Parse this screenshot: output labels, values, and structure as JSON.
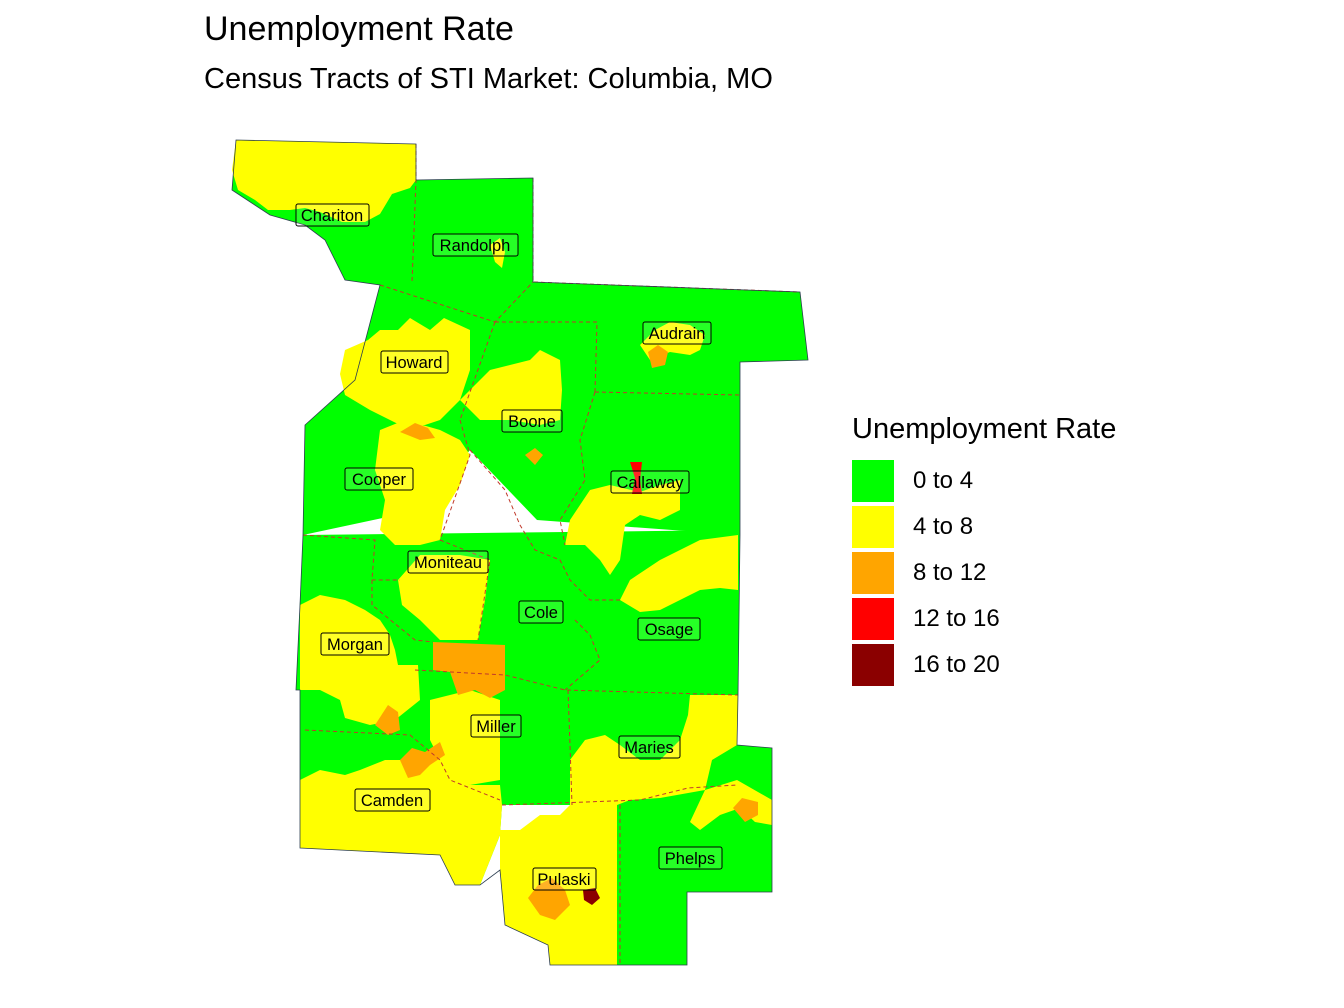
{
  "title": "Unemployment Rate",
  "subtitle": "Census Tracts of STI Market: Columbia, MO",
  "legend": {
    "title": "Unemployment Rate",
    "items": [
      {
        "label": "0 to 4",
        "color": "#00FF00"
      },
      {
        "label": "4 to 8",
        "color": "#FFFF00"
      },
      {
        "label": "8 to 12",
        "color": "#FFA500"
      },
      {
        "label": "12 to 16",
        "color": "#FF0000"
      },
      {
        "label": "16 to 20",
        "color": "#8B0000"
      }
    ]
  },
  "counties": {
    "chariton": "Chariton",
    "randolph": "Randolph",
    "audrain": "Audrain",
    "howard": "Howard",
    "boone": "Boone",
    "cooper": "Cooper",
    "callaway": "Callaway",
    "moniteau": "Moniteau",
    "cole": "Cole",
    "osage": "Osage",
    "morgan": "Morgan",
    "miller": "Miller",
    "maries": "Maries",
    "camden": "Camden",
    "phelps": "Phelps",
    "pulaski": "Pulaski"
  }
}
